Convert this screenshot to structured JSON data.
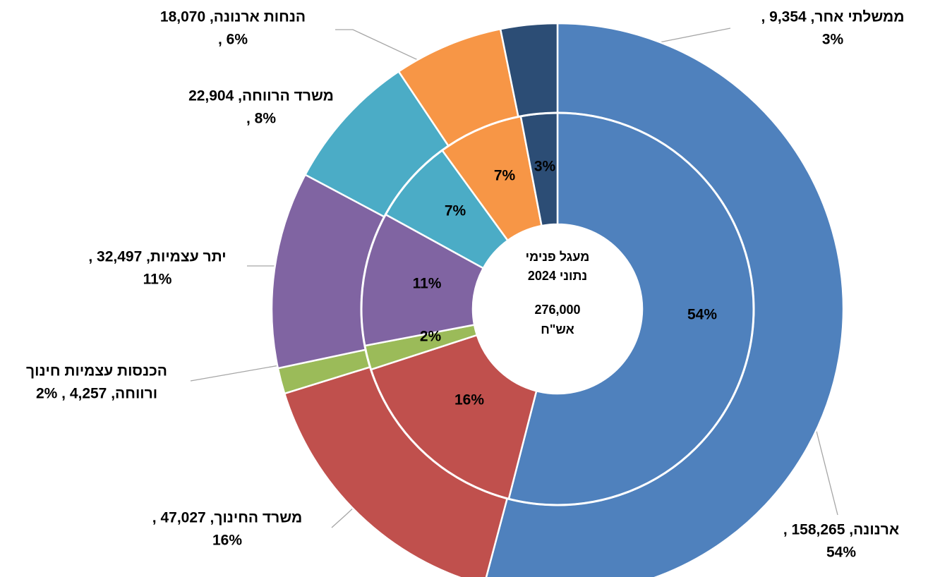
{
  "chart_data": {
    "type": "donut",
    "annotations": [
      "מעגל פנימי",
      "נתוני 2024",
      "276,000",
      "אש\"ח"
    ],
    "colors": [
      "#4f81bd",
      "#c0504d",
      "#9bbb59",
      "#8064a2",
      "#4bacc6",
      "#f79646",
      "#2c4d75"
    ],
    "series": [
      {
        "values": [
          158265,
          47027,
          4257,
          32497,
          22904,
          18070,
          9354
        ],
        "value_labels": [
          [
            "ארנונה, 158,265 ,",
            "54%"
          ],
          [
            "משרד החינוך, 47,027 ,",
            "16%"
          ],
          [
            "הכנסות עצמיות חינוך",
            "ורווחה, 4,257 , 2%"
          ],
          [
            "יתר עצמיות, 32,497 ,",
            "11%"
          ],
          [
            "משרד הרווחה, 22,904",
            "8% ,"
          ],
          [
            "הנחות ארנונה, 18,070",
            "6% ,"
          ],
          [
            "ממשלתי אחר, 9,354 ,",
            "3%"
          ]
        ]
      },
      {
        "values": [
          54,
          16,
          2,
          11,
          7,
          7,
          3
        ],
        "value_labels": [
          "54%",
          "16%",
          "2%",
          "11%",
          "7%",
          "7%",
          "3%"
        ]
      }
    ]
  }
}
